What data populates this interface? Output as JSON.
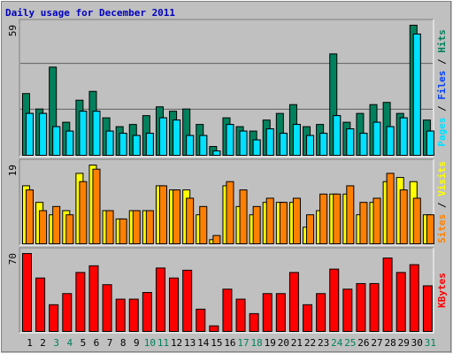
{
  "title": "Daily usage for December 2011",
  "chart_data": [
    {
      "type": "bar",
      "legend_separator": " / ",
      "ylim": [
        0,
        59
      ],
      "yticks": [
        59
      ],
      "series": [
        {
          "name": "Hits",
          "color": "#00805c",
          "values": [
            28,
            21,
            40,
            15,
            25,
            29,
            17,
            13,
            14,
            18,
            22,
            20,
            21,
            14,
            4,
            17,
            13,
            11,
            16,
            19,
            23,
            13,
            14,
            46,
            15,
            19,
            23,
            24,
            19,
            59,
            16
          ]
        },
        {
          "name": "Files",
          "color": "#0040ff",
          "values": [
            19,
            19,
            13,
            11,
            20,
            20,
            11,
            10,
            9,
            10,
            17,
            16,
            9,
            9,
            2,
            14,
            11,
            7,
            12,
            10,
            14,
            9,
            10,
            18,
            12,
            10,
            15,
            13,
            17,
            55,
            11
          ]
        },
        {
          "name": "Pages",
          "color": "#00e0ff",
          "values": [
            19,
            19,
            13,
            11,
            20,
            20,
            11,
            10,
            9,
            10,
            17,
            16,
            9,
            9,
            2,
            14,
            11,
            7,
            12,
            10,
            14,
            9,
            10,
            18,
            12,
            10,
            15,
            13,
            17,
            55,
            11
          ]
        }
      ]
    },
    {
      "type": "bar",
      "legend_separator": " / ",
      "ylim": [
        0,
        19
      ],
      "yticks": [
        19
      ],
      "series": [
        {
          "name": "Visits",
          "color": "#ffff00",
          "values": [
            14,
            10,
            7,
            8,
            17,
            19,
            8,
            6,
            8,
            8,
            14,
            13,
            13,
            7,
            1,
            14,
            9,
            7,
            10,
            10,
            10,
            4,
            8,
            12,
            12,
            7,
            10,
            15,
            16,
            15,
            7
          ]
        },
        {
          "name": "Sites",
          "color": "#ff8000",
          "values": [
            13,
            8,
            9,
            7,
            15,
            18,
            8,
            6,
            8,
            8,
            14,
            13,
            11,
            9,
            2,
            15,
            13,
            9,
            11,
            10,
            11,
            7,
            12,
            12,
            14,
            10,
            11,
            17,
            13,
            11,
            7
          ]
        }
      ]
    },
    {
      "type": "bar",
      "ylim": [
        0,
        70
      ],
      "yticks": [
        70
      ],
      "categories": [
        "1",
        "2",
        "3",
        "4",
        "5",
        "6",
        "7",
        "8",
        "9",
        "10",
        "11",
        "12",
        "13",
        "14",
        "15",
        "16",
        "17",
        "18",
        "19",
        "20",
        "21",
        "22",
        "23",
        "24",
        "25",
        "26",
        "27",
        "28",
        "29",
        "30",
        "31"
      ],
      "category_colors": [
        "#000000",
        "#000000",
        "#00805c",
        "#00805c",
        "#000000",
        "#000000",
        "#000000",
        "#000000",
        "#000000",
        "#00805c",
        "#00805c",
        "#000000",
        "#000000",
        "#000000",
        "#000000",
        "#000000",
        "#00805c",
        "#00805c",
        "#000000",
        "#000000",
        "#000000",
        "#000000",
        "#000000",
        "#00805c",
        "#00805c",
        "#000000",
        "#000000",
        "#000000",
        "#000000",
        "#000000",
        "#00805c"
      ],
      "series": [
        {
          "name": "KBytes",
          "color": "#ff0000",
          "values": [
            70,
            48,
            24,
            34,
            53,
            59,
            42,
            29,
            29,
            35,
            57,
            48,
            55,
            20,
            5,
            38,
            29,
            16,
            34,
            34,
            53,
            24,
            34,
            56,
            38,
            43,
            43,
            66,
            53,
            60,
            41
          ]
        }
      ]
    }
  ]
}
